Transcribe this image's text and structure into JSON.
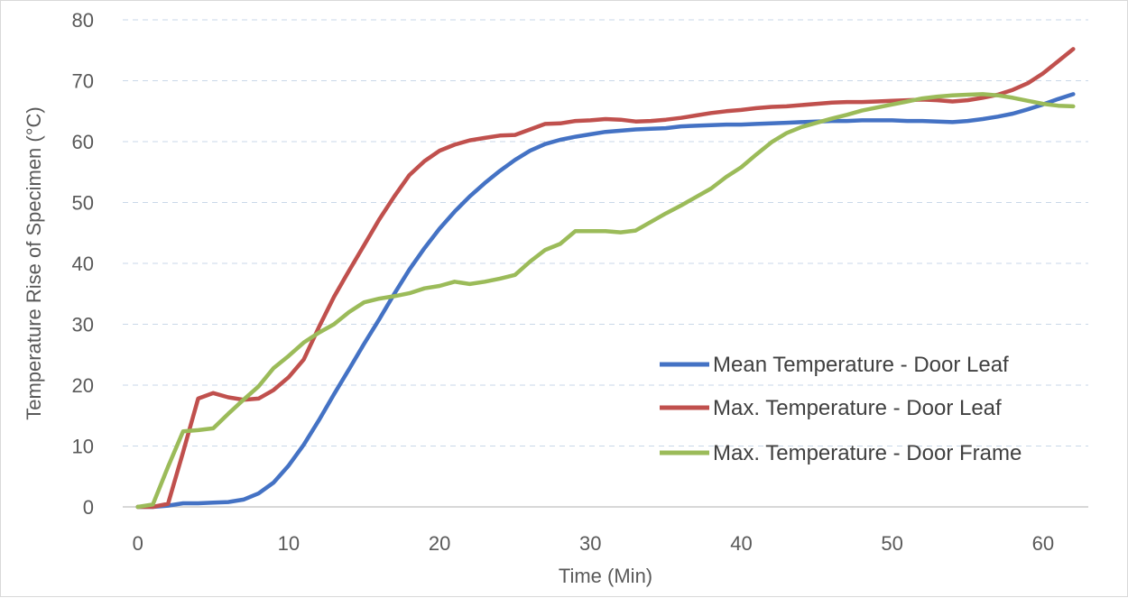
{
  "chart_data": {
    "type": "line",
    "xlabel": "Time (Min)",
    "ylabel": "Temperature Rise of Specimen (°C)",
    "xlim": [
      -1,
      63
    ],
    "ylim": [
      0,
      80
    ],
    "xticks": [
      0,
      10,
      20,
      30,
      40,
      50,
      60
    ],
    "yticks": [
      0,
      10,
      20,
      30,
      40,
      50,
      60,
      70,
      80
    ],
    "grid": true,
    "legend_position": "right",
    "series": [
      {
        "name": "Mean Temperature - Door Leaf",
        "color": "#4472c4",
        "x": [
          0,
          1,
          2,
          3,
          4,
          5,
          6,
          7,
          8,
          9,
          10,
          11,
          12,
          13,
          14,
          15,
          16,
          17,
          18,
          19,
          20,
          21,
          22,
          23,
          24,
          25,
          26,
          27,
          28,
          29,
          30,
          31,
          32,
          33,
          34,
          35,
          36,
          37,
          38,
          39,
          40,
          41,
          42,
          43,
          44,
          45,
          46,
          47,
          48,
          49,
          50,
          51,
          52,
          53,
          54,
          55,
          56,
          57,
          58,
          59,
          60,
          61,
          62
        ],
        "values": [
          0,
          0,
          0.2,
          0.6,
          0.6,
          0.7,
          0.8,
          1.2,
          2.2,
          4,
          6.8,
          10.2,
          14.2,
          18.5,
          22.6,
          26.8,
          30.8,
          35,
          39,
          42.5,
          45.7,
          48.5,
          51,
          53.2,
          55.2,
          57,
          58.5,
          59.6,
          60.3,
          60.8,
          61.2,
          61.6,
          61.8,
          62,
          62.1,
          62.2,
          62.5,
          62.6,
          62.7,
          62.8,
          62.8,
          62.9,
          63,
          63.1,
          63.2,
          63.3,
          63.4,
          63.4,
          63.5,
          63.5,
          63.5,
          63.4,
          63.4,
          63.3,
          63.2,
          63.4,
          63.7,
          64.1,
          64.6,
          65.3,
          66.1,
          67,
          67.8
        ]
      },
      {
        "name": "Max. Temperature - Door Leaf",
        "color": "#c0504d",
        "x": [
          0,
          1,
          2,
          3,
          4,
          5,
          6,
          7,
          8,
          9,
          10,
          11,
          12,
          13,
          14,
          15,
          16,
          17,
          18,
          19,
          20,
          21,
          22,
          23,
          24,
          25,
          26,
          27,
          28,
          29,
          30,
          31,
          32,
          33,
          34,
          35,
          36,
          37,
          38,
          39,
          40,
          41,
          42,
          43,
          44,
          45,
          46,
          47,
          48,
          49,
          50,
          51,
          52,
          53,
          54,
          55,
          56,
          57,
          58,
          59,
          60,
          61,
          62
        ],
        "values": [
          0,
          0,
          0.5,
          9,
          17.8,
          18.7,
          18,
          17.6,
          17.8,
          19.2,
          21.3,
          24.2,
          29.5,
          34.5,
          38.8,
          43,
          47.2,
          51,
          54.5,
          56.8,
          58.5,
          59.5,
          60.2,
          60.6,
          61,
          61.1,
          62,
          62.9,
          63,
          63.4,
          63.5,
          63.7,
          63.6,
          63.3,
          63.4,
          63.6,
          63.9,
          64.3,
          64.7,
          65,
          65.2,
          65.5,
          65.7,
          65.8,
          66,
          66.2,
          66.4,
          66.5,
          66.5,
          66.6,
          66.7,
          66.8,
          66.9,
          66.8,
          66.6,
          66.8,
          67.2,
          67.7,
          68.5,
          69.6,
          71.2,
          73.2,
          75.2
        ]
      },
      {
        "name": "Max. Temperature - Door Frame",
        "color": "#9bbb59",
        "x": [
          0,
          1,
          2,
          3,
          4,
          5,
          6,
          7,
          8,
          9,
          10,
          11,
          12,
          13,
          14,
          15,
          16,
          17,
          18,
          19,
          20,
          21,
          22,
          23,
          24,
          25,
          26,
          27,
          28,
          29,
          30,
          31,
          32,
          33,
          34,
          35,
          36,
          37,
          38,
          39,
          40,
          41,
          42,
          43,
          44,
          45,
          46,
          47,
          48,
          49,
          50,
          51,
          52,
          53,
          54,
          55,
          56,
          57,
          58,
          59,
          60,
          61,
          62
        ],
        "values": [
          0,
          0.4,
          6.6,
          12.4,
          12.6,
          12.9,
          15.3,
          17.6,
          19.8,
          22.8,
          24.8,
          27,
          28.6,
          30,
          32,
          33.6,
          34.2,
          34.6,
          35.1,
          35.9,
          36.3,
          37,
          36.6,
          37,
          37.5,
          38.1,
          40.3,
          42.2,
          43.2,
          45.3,
          45.3,
          45.3,
          45.1,
          45.4,
          46.8,
          48.2,
          49.5,
          50.9,
          52.3,
          54.2,
          55.8,
          57.9,
          59.9,
          61.4,
          62.4,
          63.1,
          63.8,
          64.4,
          65.1,
          65.6,
          66.1,
          66.6,
          67.1,
          67.4,
          67.6,
          67.7,
          67.8,
          67.6,
          67.2,
          66.7,
          66.2,
          65.9,
          65.8
        ]
      }
    ]
  }
}
